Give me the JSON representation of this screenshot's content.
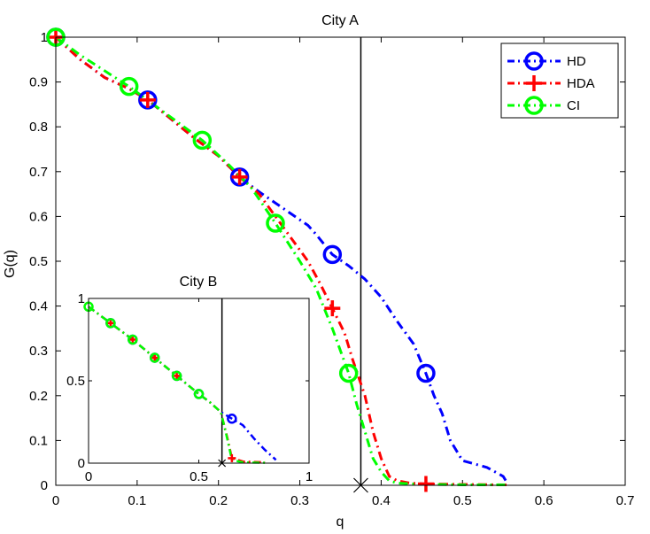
{
  "chart_data": [
    {
      "type": "line",
      "title": "City A",
      "xlabel": "q",
      "ylabel": "G(q)",
      "xlim": [
        0,
        0.7
      ],
      "ylim": [
        0,
        1
      ],
      "xticks": [
        "0",
        "0.1",
        "0.2",
        "0.3",
        "0.4",
        "0.5",
        "0.6",
        "0.7"
      ],
      "yticks": [
        "0",
        "0.1",
        "0.2",
        "0.3",
        "0.4",
        "0.5",
        "0.6",
        "0.7",
        "0.8",
        "0.9",
        "1"
      ],
      "grid": false,
      "legend_position": "top-right",
      "vertical_line_x": 0.375,
      "cross_marker": [
        0.375,
        0.0
      ],
      "series": [
        {
          "name": "HD",
          "color": "#0000ff",
          "marker": "circle",
          "line_style": "dash-dot",
          "x": [
            0,
            0.03,
            0.06,
            0.09,
            0.113,
            0.14,
            0.17,
            0.2,
            0.226,
            0.25,
            0.27,
            0.29,
            0.31,
            0.32,
            0.34,
            0.36,
            0.38,
            0.4,
            0.42,
            0.44,
            0.455,
            0.465,
            0.475,
            0.485,
            0.5,
            0.51,
            0.52,
            0.53,
            0.54,
            0.55,
            0.555
          ],
          "y": [
            1,
            0.95,
            0.91,
            0.885,
            0.86,
            0.82,
            0.775,
            0.735,
            0.688,
            0.655,
            0.63,
            0.605,
            0.58,
            0.56,
            0.515,
            0.49,
            0.46,
            0.42,
            0.365,
            0.315,
            0.25,
            0.2,
            0.16,
            0.1,
            0.055,
            0.05,
            0.045,
            0.04,
            0.03,
            0.02,
            0.005
          ],
          "marker_x": [
            0,
            0.113,
            0.226,
            0.34,
            0.455
          ],
          "marker_y": [
            1,
            0.86,
            0.688,
            0.515,
            0.25
          ]
        },
        {
          "name": "HDA",
          "color": "#ff0000",
          "marker": "plus",
          "line_style": "dash-dot",
          "x": [
            0,
            0.03,
            0.06,
            0.09,
            0.113,
            0.14,
            0.17,
            0.2,
            0.226,
            0.25,
            0.27,
            0.29,
            0.31,
            0.325,
            0.34,
            0.355,
            0.365,
            0.38,
            0.39,
            0.4,
            0.41,
            0.42,
            0.435,
            0.455,
            0.5,
            0.555
          ],
          "y": [
            1,
            0.95,
            0.91,
            0.885,
            0.86,
            0.82,
            0.775,
            0.735,
            0.688,
            0.65,
            0.6,
            0.55,
            0.5,
            0.45,
            0.395,
            0.34,
            0.28,
            0.2,
            0.12,
            0.06,
            0.02,
            0.01,
            0.005,
            0.003,
            0.002,
            0.001
          ],
          "marker_x": [
            0,
            0.113,
            0.226,
            0.34,
            0.455
          ],
          "marker_y": [
            1,
            0.86,
            0.688,
            0.395,
            0.003
          ]
        },
        {
          "name": "CI",
          "color": "#00ff00",
          "marker": "circle",
          "line_style": "dash-dot",
          "x": [
            0,
            0.03,
            0.06,
            0.09,
            0.12,
            0.15,
            0.18,
            0.21,
            0.24,
            0.27,
            0.3,
            0.32,
            0.34,
            0.36,
            0.37,
            0.38,
            0.39,
            0.4,
            0.41,
            0.42,
            0.44,
            0.46,
            0.5,
            0.555
          ],
          "y": [
            1,
            0.96,
            0.925,
            0.89,
            0.85,
            0.81,
            0.77,
            0.72,
            0.665,
            0.585,
            0.5,
            0.44,
            0.35,
            0.25,
            0.18,
            0.12,
            0.06,
            0.03,
            0.01,
            0.005,
            0.003,
            0.002,
            0.001,
            0.001
          ],
          "marker_x": [
            0,
            0.09,
            0.18,
            0.27,
            0.36
          ],
          "marker_y": [
            1,
            0.89,
            0.77,
            0.585,
            0.25
          ]
        }
      ]
    },
    {
      "type": "line",
      "title": "City B",
      "xlim": [
        0,
        1
      ],
      "ylim": [
        0,
        1
      ],
      "xticks": [
        "0",
        "0.5",
        "1"
      ],
      "yticks": [
        "0",
        "0.5",
        "1"
      ],
      "vertical_line_x": 0.605,
      "cross_marker": [
        0.605,
        0.0
      ],
      "series": [
        {
          "name": "HD",
          "color": "#0000ff",
          "x": [
            0,
            0.1,
            0.2,
            0.3,
            0.4,
            0.5,
            0.55,
            0.6,
            0.65,
            0.7,
            0.75,
            0.8,
            0.85
          ],
          "y": [
            0.95,
            0.85,
            0.75,
            0.64,
            0.53,
            0.42,
            0.37,
            0.31,
            0.27,
            0.23,
            0.15,
            0.08,
            0.02
          ],
          "marker_x": [
            0.1,
            0.2,
            0.3,
            0.4,
            0.5,
            0.65
          ],
          "marker_y": [
            0.85,
            0.75,
            0.64,
            0.53,
            0.42,
            0.27
          ]
        },
        {
          "name": "HDA",
          "color": "#ff0000",
          "x": [
            0,
            0.1,
            0.2,
            0.3,
            0.4,
            0.5,
            0.55,
            0.6,
            0.63,
            0.65,
            0.7,
            0.8
          ],
          "y": [
            0.95,
            0.85,
            0.75,
            0.64,
            0.53,
            0.42,
            0.37,
            0.31,
            0.15,
            0.03,
            0.01,
            0.005
          ],
          "marker_x": [
            0.1,
            0.2,
            0.3,
            0.4,
            0.65
          ],
          "marker_y": [
            0.85,
            0.75,
            0.64,
            0.53,
            0.03
          ]
        },
        {
          "name": "CI",
          "color": "#00ff00",
          "x": [
            0,
            0.1,
            0.2,
            0.3,
            0.4,
            0.5,
            0.55,
            0.6,
            0.62,
            0.65,
            0.7,
            0.8
          ],
          "y": [
            0.95,
            0.85,
            0.75,
            0.64,
            0.53,
            0.42,
            0.37,
            0.31,
            0.2,
            0.02,
            0.005,
            0.002
          ],
          "marker_x": [
            0,
            0.1,
            0.2,
            0.3,
            0.4,
            0.5
          ],
          "marker_y": [
            0.95,
            0.85,
            0.75,
            0.64,
            0.53,
            0.42
          ]
        }
      ]
    }
  ]
}
